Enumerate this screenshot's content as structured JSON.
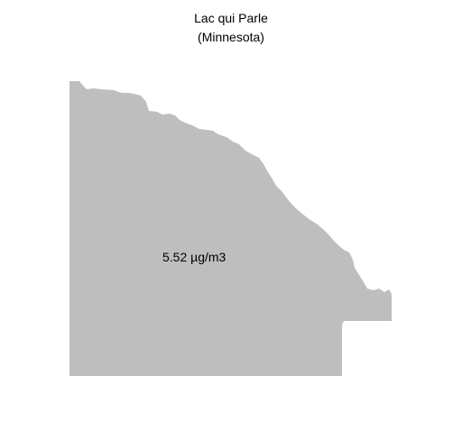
{
  "map": {
    "title": "Lac qui Parle",
    "subtitle": "(Minnesota)",
    "region": {
      "name": "Lac qui Parle",
      "value_label": "5.52 µg/m3",
      "fill_color": "#bebebe"
    }
  }
}
